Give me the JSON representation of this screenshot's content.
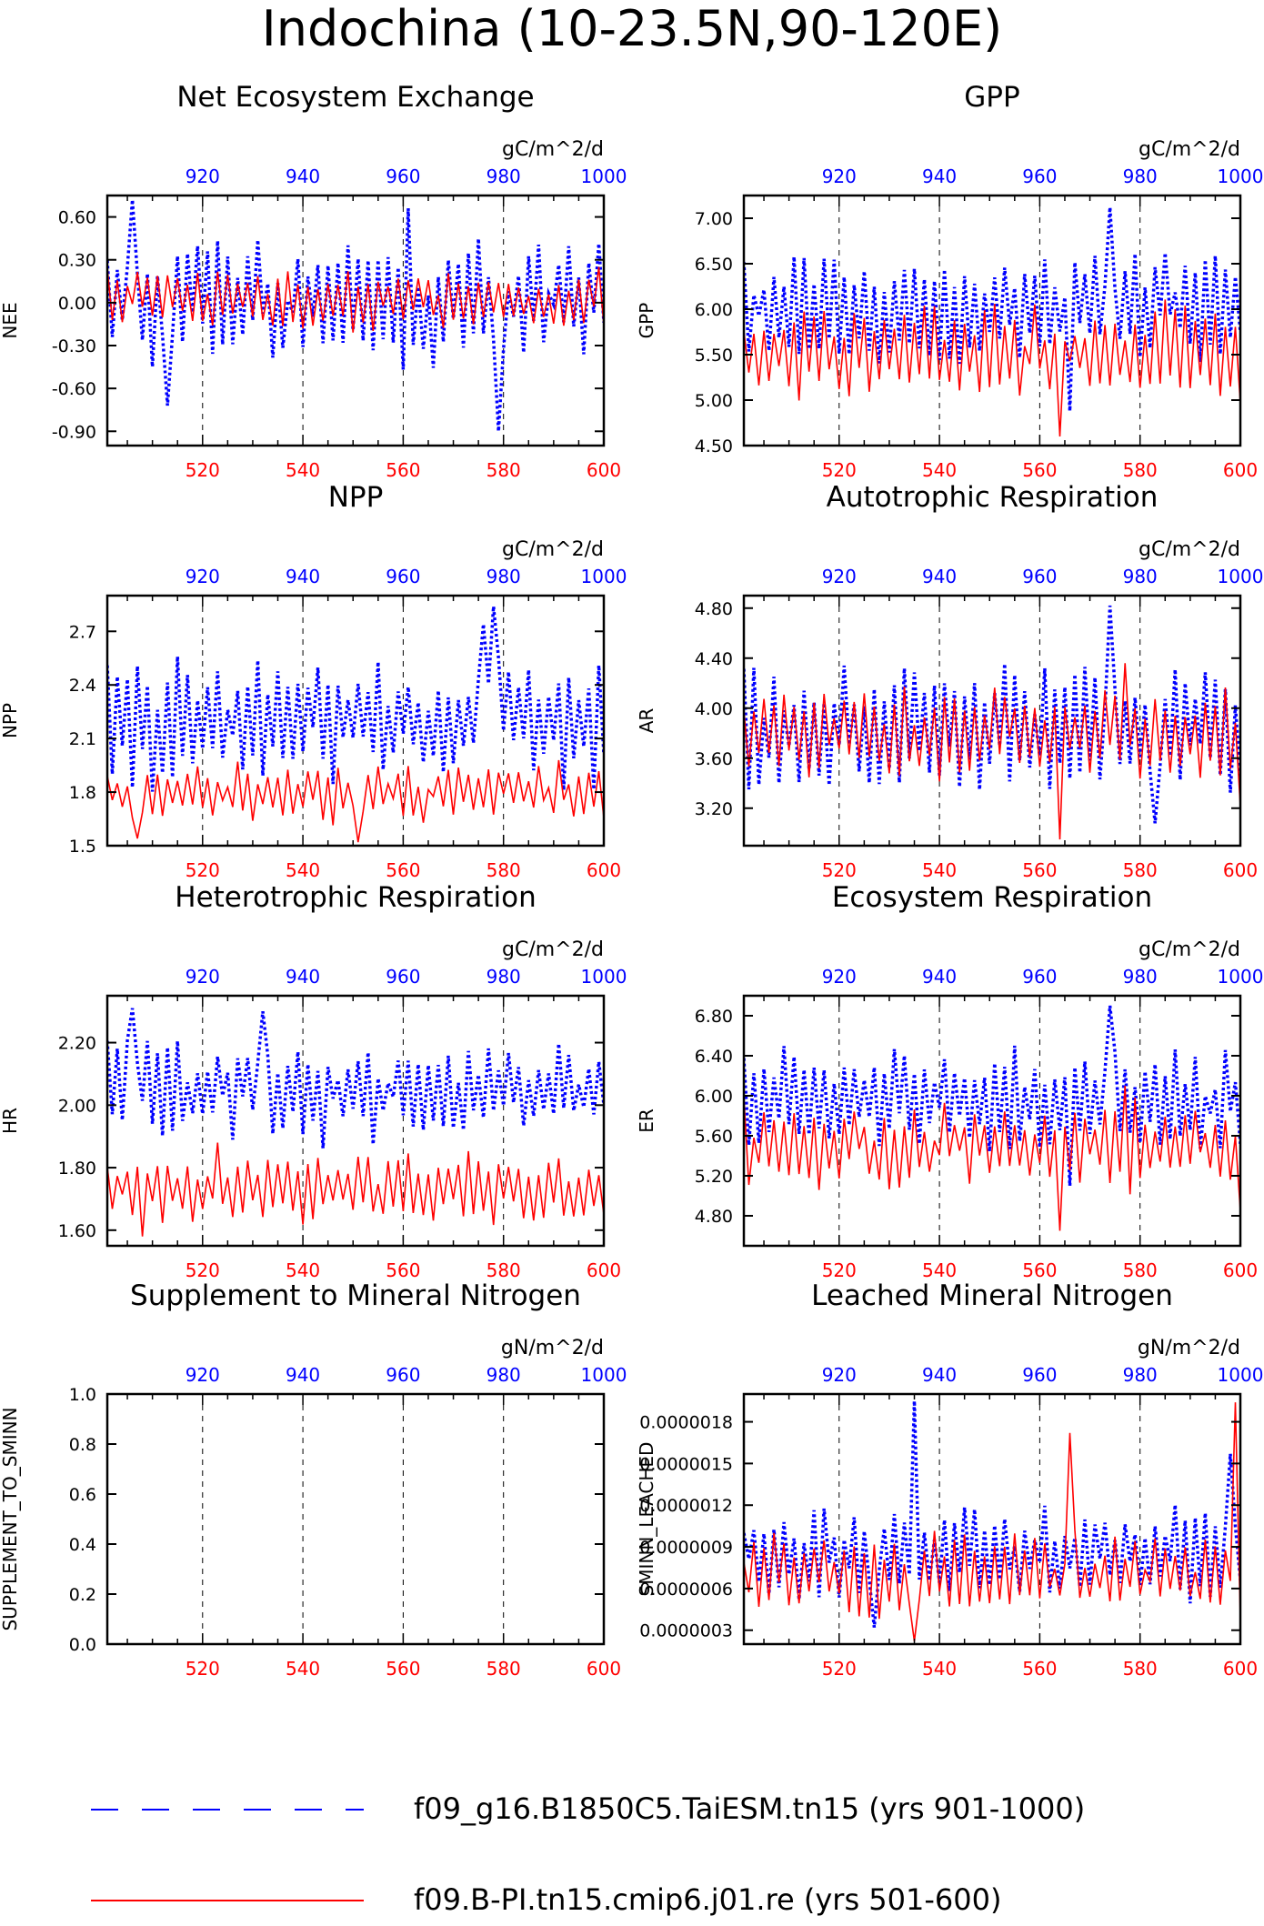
{
  "figure_title": "Indochina (10-23.5N,90-120E)",
  "colors": {
    "series_a": "#0000ff",
    "series_b": "#ff0000",
    "axis": "#000000",
    "grid": "#000000"
  },
  "legend": {
    "entries": [
      {
        "label": "f09_g16.B1850C5.TaiESM.tn15 (yrs 901-1000)",
        "color": "#0000ff",
        "style": "dashed"
      },
      {
        "label": "f09.B-PI.tn15.cmip6.j01.re (yrs 501-600)",
        "color": "#ff0000",
        "style": "solid"
      }
    ]
  },
  "chart_data": [
    {
      "type": "line",
      "title": "Net Ecosystem Exchange",
      "ylabel": "NEE",
      "units": "gC/m^2/d",
      "ylim": [
        -1.0,
        0.75
      ],
      "yticks": [
        0.6,
        0.3,
        0.0,
        -0.3,
        -0.6,
        -0.9
      ],
      "ytick_labels": [
        "0.60",
        "0.30",
        "0.00",
        "-0.30",
        "-0.60",
        "-0.90"
      ],
      "x_bottom": {
        "range": [
          501,
          600
        ],
        "ticks": [
          520,
          540,
          560,
          580,
          600
        ],
        "labels": [
          "520",
          "540",
          "560",
          "580",
          "600"
        ]
      },
      "x_top": {
        "range": [
          901,
          1000
        ],
        "ticks": [
          920,
          940,
          960,
          980,
          1000
        ],
        "labels": [
          "920",
          "940",
          "960",
          "980",
          "1000"
        ]
      },
      "grid": "dashed vertical lines at x ticks",
      "series": [
        {
          "color": "#0000ff",
          "style": "dashed",
          "base": 0.0,
          "amp": 0.38,
          "wobble": 0.15,
          "seed": 11,
          "spikes": [
            [
              906,
              0.72
            ],
            [
              913,
              -0.72
            ],
            [
              961,
              0.66
            ],
            [
              979,
              -0.9
            ]
          ]
        },
        {
          "color": "#ff0000",
          "style": "solid",
          "base": 0.02,
          "amp": 0.19,
          "wobble": 0.06,
          "seed": 23,
          "spikes": []
        }
      ]
    },
    {
      "type": "line",
      "title": "GPP",
      "ylabel": "GPP",
      "units": "gC/m^2/d",
      "ylim": [
        4.5,
        7.25
      ],
      "yticks": [
        7.0,
        6.5,
        6.0,
        5.5,
        5.0,
        4.5
      ],
      "ytick_labels": [
        "7.00",
        "6.50",
        "6.00",
        "5.50",
        "5.00",
        "4.50"
      ],
      "x_bottom": {
        "range": [
          501,
          600
        ],
        "ticks": [
          520,
          540,
          560,
          580,
          600
        ],
        "labels": [
          "520",
          "540",
          "560",
          "580",
          "600"
        ]
      },
      "x_top": {
        "range": [
          901,
          1000
        ],
        "ticks": [
          920,
          940,
          960,
          980,
          1000
        ],
        "labels": [
          "920",
          "940",
          "960",
          "980",
          "1000"
        ]
      },
      "grid": "dashed vertical lines at x ticks",
      "series": [
        {
          "color": "#0000ff",
          "style": "dashed",
          "base": 6.0,
          "amp": 0.55,
          "wobble": 0.18,
          "seed": 5,
          "spikes": [
            [
              974,
              7.12
            ],
            [
              966,
              4.88
            ]
          ]
        },
        {
          "color": "#ff0000",
          "style": "solid",
          "base": 5.55,
          "amp": 0.45,
          "wobble": 0.15,
          "seed": 7,
          "spikes": [
            [
              564,
              4.6
            ],
            [
              600,
              4.97
            ]
          ]
        }
      ]
    },
    {
      "type": "line",
      "title": "NPP",
      "ylabel": "NPP",
      "units": "gC/m^2/d",
      "ylim": [
        1.5,
        2.9
      ],
      "yticks": [
        2.7,
        2.4,
        2.1,
        1.8,
        1.5
      ],
      "ytick_labels": [
        "2.7",
        "2.4",
        "2.1",
        "1.8",
        "1.5"
      ],
      "x_bottom": {
        "range": [
          501,
          600
        ],
        "ticks": [
          520,
          540,
          560,
          580,
          600
        ],
        "labels": [
          "520",
          "540",
          "560",
          "580",
          "600"
        ]
      },
      "x_top": {
        "range": [
          901,
          1000
        ],
        "ticks": [
          920,
          940,
          960,
          980,
          1000
        ],
        "labels": [
          "920",
          "940",
          "960",
          "980",
          "1000"
        ]
      },
      "grid": "dashed vertical lines at x ticks",
      "series": [
        {
          "color": "#0000ff",
          "style": "dashed",
          "base": 2.2,
          "amp": 0.32,
          "wobble": 0.1,
          "seed": 13,
          "spikes": [
            [
              978,
              2.84
            ],
            [
              976,
              2.74
            ]
          ]
        },
        {
          "color": "#ff0000",
          "style": "solid",
          "base": 1.8,
          "amp": 0.14,
          "wobble": 0.05,
          "seed": 17,
          "spikes": [
            [
              551,
              1.52
            ],
            [
              507,
              1.54
            ]
          ]
        }
      ]
    },
    {
      "type": "line",
      "title": "Autotrophic Respiration",
      "ylabel": "AR",
      "units": "gC/m^2/d",
      "ylim": [
        2.9,
        4.9
      ],
      "yticks": [
        4.8,
        4.4,
        4.0,
        3.6,
        3.2
      ],
      "ytick_labels": [
        "4.80",
        "4.40",
        "4.00",
        "3.60",
        "3.20"
      ],
      "x_bottom": {
        "range": [
          501,
          600
        ],
        "ticks": [
          520,
          540,
          560,
          580,
          600
        ],
        "labels": [
          "520",
          "540",
          "560",
          "580",
          "600"
        ]
      },
      "x_top": {
        "range": [
          901,
          1000
        ],
        "ticks": [
          920,
          940,
          960,
          980,
          1000
        ],
        "labels": [
          "920",
          "940",
          "960",
          "980",
          "1000"
        ]
      },
      "grid": "dashed vertical lines at x ticks",
      "series": [
        {
          "color": "#0000ff",
          "style": "dashed",
          "base": 3.85,
          "amp": 0.45,
          "wobble": 0.12,
          "seed": 29,
          "spikes": [
            [
              974,
              4.82
            ],
            [
              983,
              3.08
            ]
          ]
        },
        {
          "color": "#ff0000",
          "style": "solid",
          "base": 3.8,
          "amp": 0.32,
          "wobble": 0.1,
          "seed": 31,
          "spikes": [
            [
              564,
              2.95
            ],
            [
              577,
              4.36
            ],
            [
              600,
              3.22
            ]
          ]
        }
      ]
    },
    {
      "type": "line",
      "title": "Heterotrophic Respiration",
      "ylabel": "HR",
      "units": "gC/m^2/d",
      "ylim": [
        1.55,
        2.35
      ],
      "yticks": [
        2.2,
        2.0,
        1.8,
        1.6
      ],
      "ytick_labels": [
        "2.20",
        "2.00",
        "1.80",
        "1.60"
      ],
      "x_bottom": {
        "range": [
          501,
          600
        ],
        "ticks": [
          520,
          540,
          560,
          580,
          600
        ],
        "labels": [
          "520",
          "540",
          "560",
          "580",
          "600"
        ]
      },
      "x_top": {
        "range": [
          901,
          1000
        ],
        "ticks": [
          920,
          940,
          960,
          980,
          1000
        ],
        "labels": [
          "920",
          "940",
          "960",
          "980",
          "1000"
        ]
      },
      "grid": "dashed vertical lines at x ticks",
      "series": [
        {
          "color": "#0000ff",
          "style": "dashed",
          "base": 2.05,
          "amp": 0.14,
          "wobble": 0.05,
          "seed": 37,
          "spikes": [
            [
              906,
              2.31
            ],
            [
              932,
              2.3
            ],
            [
              906,
              2.31
            ]
          ]
        },
        {
          "color": "#ff0000",
          "style": "solid",
          "base": 1.73,
          "amp": 0.1,
          "wobble": 0.04,
          "seed": 41,
          "spikes": [
            [
              508,
              1.58
            ],
            [
              523,
              1.88
            ]
          ]
        }
      ]
    },
    {
      "type": "line",
      "title": "Ecosystem Respiration",
      "ylabel": "ER",
      "units": "gC/m^2/d",
      "ylim": [
        4.5,
        7.0
      ],
      "yticks": [
        6.8,
        6.4,
        6.0,
        5.6,
        5.2,
        4.8
      ],
      "ytick_labels": [
        "6.80",
        "6.40",
        "6.00",
        "5.60",
        "5.20",
        "4.80"
      ],
      "x_bottom": {
        "range": [
          501,
          600
        ],
        "ticks": [
          520,
          540,
          560,
          580,
          600
        ],
        "labels": [
          "520",
          "540",
          "560",
          "580",
          "600"
        ]
      },
      "x_top": {
        "range": [
          901,
          1000
        ],
        "ticks": [
          920,
          940,
          960,
          980,
          1000
        ],
        "labels": [
          "920",
          "940",
          "960",
          "980",
          "1000"
        ]
      },
      "grid": "dashed vertical lines at x ticks",
      "series": [
        {
          "color": "#0000ff",
          "style": "dashed",
          "base": 5.95,
          "amp": 0.45,
          "wobble": 0.15,
          "seed": 43,
          "spikes": [
            [
              974,
              6.9
            ],
            [
              966,
              5.1
            ]
          ]
        },
        {
          "color": "#ff0000",
          "style": "solid",
          "base": 5.5,
          "amp": 0.38,
          "wobble": 0.12,
          "seed": 47,
          "spikes": [
            [
              564,
              4.65
            ],
            [
              577,
              6.1
            ],
            [
              600,
              4.85
            ]
          ]
        }
      ]
    },
    {
      "type": "line",
      "title": "Supplement to Mineral Nitrogen",
      "ylabel": "SUPPLEMENT_TO_SMINN",
      "units": "gN/m^2/d",
      "ylim": [
        0.0,
        1.0
      ],
      "yticks": [
        1.0,
        0.8,
        0.6,
        0.4,
        0.2,
        0.0
      ],
      "ytick_labels": [
        "1.0",
        "0.8",
        "0.6",
        "0.4",
        "0.2",
        "0.0"
      ],
      "x_bottom": {
        "range": [
          501,
          600
        ],
        "ticks": [
          520,
          540,
          560,
          580,
          600
        ],
        "labels": [
          "520",
          "540",
          "560",
          "580",
          "600"
        ]
      },
      "x_top": {
        "range": [
          901,
          1000
        ],
        "ticks": [
          920,
          940,
          960,
          980,
          1000
        ],
        "labels": [
          "920",
          "940",
          "960",
          "980",
          "1000"
        ]
      },
      "grid": "dashed vertical lines at x ticks",
      "series": []
    },
    {
      "type": "line",
      "title": "Leached Mineral Nitrogen",
      "ylabel": "SMINN_LEACHED",
      "units": "gN/m^2/d",
      "ylim": [
        2e-07,
        2e-06
      ],
      "yticks": [
        1.8e-06,
        1.5e-06,
        1.2e-06,
        9e-07,
        6e-07,
        3e-07
      ],
      "ytick_labels": [
        "0.0000018",
        "0.0000015",
        "0.0000012",
        "0.0000009",
        "0.0000006",
        "0.0000003"
      ],
      "x_bottom": {
        "range": [
          501,
          600
        ],
        "ticks": [
          520,
          540,
          560,
          580,
          600
        ],
        "labels": [
          "520",
          "540",
          "560",
          "580",
          "600"
        ]
      },
      "x_top": {
        "range": [
          901,
          1000
        ],
        "ticks": [
          920,
          940,
          960,
          980,
          1000
        ],
        "labels": [
          "920",
          "940",
          "960",
          "980",
          "1000"
        ]
      },
      "grid": "dashed vertical lines at x ticks",
      "series": [
        {
          "color": "#0000ff",
          "style": "dashed",
          "base": 8.5e-07,
          "amp": 3e-07,
          "wobble": 1e-07,
          "seed": 53,
          "spikes": [
            [
              935,
              1.95e-06
            ],
            [
              927,
              3.2e-07
            ],
            [
              998,
              1.57e-06
            ]
          ]
        },
        {
          "color": "#ff0000",
          "style": "solid",
          "base": 7e-07,
          "amp": 2.5e-07,
          "wobble": 1e-07,
          "seed": 59,
          "spikes": [
            [
              535,
              2.2e-07
            ],
            [
              566,
              1.72e-06
            ],
            [
              599,
              1.94e-06
            ]
          ]
        }
      ]
    }
  ]
}
